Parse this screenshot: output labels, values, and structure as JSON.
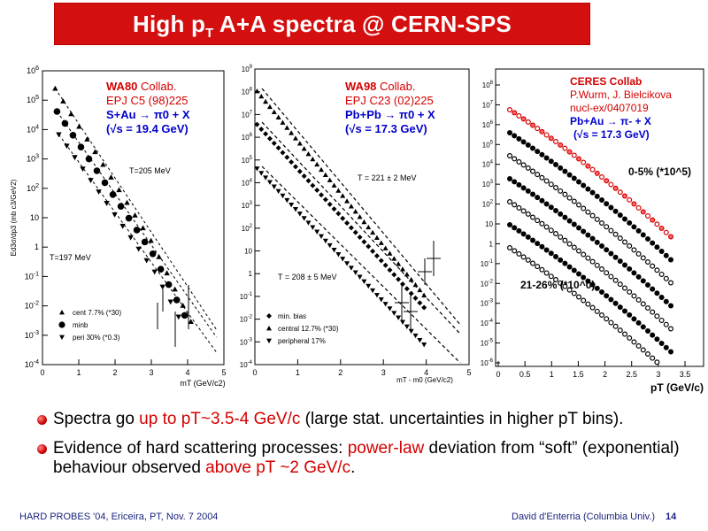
{
  "title": "High pT A+A spectra @ CERN-SPS",
  "title_parts": {
    "pre": "High p",
    "sub": "T",
    "post": " A+A spectra @ CERN-SPS"
  },
  "panel1": {
    "collab": "WA80",
    "collab_suffix": " Collab.",
    "ref": "EPJ C5 (98)225",
    "system": "S+Au → π0 + X",
    "energy": "(√s = 19.4 GeV)",
    "ylabel": "Ed3σ/dp3 (mb c3/GeV2)",
    "xlabel": "mT (GeV/c2)",
    "yticks": [
      "10^6",
      "10^5",
      "10^4",
      "10^3",
      "10^2",
      "10",
      "1",
      "10^-1",
      "10^-2",
      "10^-3",
      "10^-4"
    ],
    "xticks": [
      "0",
      "1",
      "2",
      "3",
      "4",
      "5"
    ],
    "annot_T1": "T=205 MeV",
    "annot_T2": "T=197 MeV",
    "legend": [
      "cent 7.7% (*30)",
      "minb",
      "peri 30% (*0.3)"
    ]
  },
  "panel2": {
    "collab": "WA98",
    "collab_suffix": " Collab.",
    "ref": "EPJ C23 (02)225",
    "system": "Pb+Pb → π0 + X",
    "energy": "(√s = 17.3 GeV)",
    "xlabel": "mT - m0 (GeV/c2)",
    "yticks": [
      "10^9",
      "10^8",
      "10^7",
      "10^6",
      "10^5",
      "10^4",
      "10^3",
      "10^2",
      "10",
      "1",
      "10^-1",
      "10^-2",
      "10^-3",
      "10^-4"
    ],
    "xticks": [
      "0",
      "1",
      "2",
      "3",
      "4",
      "5"
    ],
    "annot_T1": "T = 221 ± 2 MeV",
    "annot_T2": "T = 208 ± 5 MeV",
    "legend": [
      "min. bias",
      "central 12.7% (*30)",
      "peripheral 17%"
    ]
  },
  "panel3": {
    "collab": "CERES Collab",
    "authors": "P.Wurm, J. Bielcikova",
    "ref": "nucl-ex/0407019",
    "system": "Pb+Au → π- + X",
    "energy": "(√s = 17.3 GeV)",
    "xlabel": "pT (GeV/c)",
    "yticks": [
      "10^8",
      "10^7",
      "10^6",
      "10^5",
      "10^4",
      "10^3",
      "10^2",
      "10",
      "1",
      "10^-1",
      "10^-2",
      "10^-3",
      "10^-4",
      "10^-5",
      "10^-6"
    ],
    "xticks": [
      "0",
      "0.5",
      "1",
      "1.5",
      "2",
      "2.5",
      "3",
      "3.5"
    ],
    "annot_top": "0-5% (*10^5)",
    "annot_bottom": "21-26% (*10^0)"
  },
  "bullets": [
    {
      "pre": "Spectra go ",
      "red": "up to pT~3.5-4 GeV/c",
      "post": " (large stat. uncertainties in higher pT bins)."
    },
    {
      "pre": "Evidence of hard scattering processes: ",
      "red": "power-law",
      "mid": " deviation from “soft” (exponential) behaviour observed ",
      "red2": "above pT ~2 GeV/c",
      "post": "."
    }
  ],
  "footer_left": "HARD PROBES '04, Ericeira, PT, Nov. 7 2004",
  "footer_right": "David d'Enterria (Columbia Univ.)",
  "page_number": "14",
  "colors": {
    "title_bg": "#d40f0f",
    "accent_red": "#d40000",
    "accent_blue": "#0000cc",
    "footer": "#1a237e"
  }
}
